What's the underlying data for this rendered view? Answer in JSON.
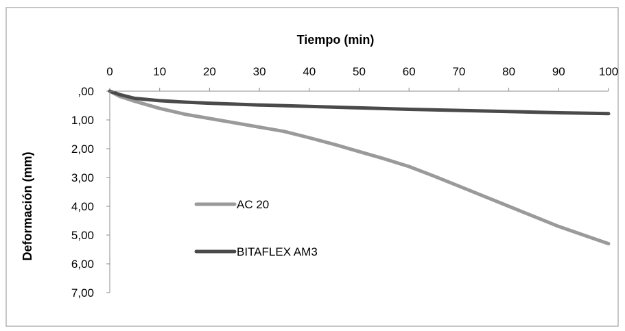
{
  "chart_data": {
    "type": "line",
    "title": "",
    "xlabel": "Tiempo (min)",
    "ylabel": "Deformación (mm)",
    "x_axis_position": "top",
    "y_axis_inverted": true,
    "xlim": [
      0,
      100
    ],
    "ylim": [
      0,
      7
    ],
    "x_ticks": [
      0,
      10,
      20,
      30,
      40,
      50,
      60,
      70,
      80,
      90,
      100
    ],
    "x_tick_labels": [
      "0",
      "10",
      "20",
      "30",
      "40",
      "50",
      "60",
      "70",
      "80",
      "90",
      "100"
    ],
    "y_ticks": [
      0,
      1,
      2,
      3,
      4,
      5,
      6,
      7
    ],
    "y_tick_labels": [
      ",00",
      "1,00",
      "2,00",
      "3,00",
      "4,00",
      "5,00",
      "6,00",
      "7,00"
    ],
    "grid": false,
    "legend_position": "left-center",
    "series": [
      {
        "name": "AC 20",
        "color": "#9a9a9a",
        "x": [
          0,
          2,
          5,
          10,
          15,
          20,
          25,
          30,
          35,
          40,
          45,
          50,
          55,
          60,
          65,
          70,
          75,
          80,
          85,
          90,
          95,
          100
        ],
        "values": [
          0,
          0.18,
          0.35,
          0.6,
          0.8,
          0.95,
          1.1,
          1.25,
          1.4,
          1.62,
          1.85,
          2.1,
          2.35,
          2.62,
          2.95,
          3.3,
          3.65,
          4.0,
          4.35,
          4.7,
          5.0,
          5.3
        ]
      },
      {
        "name": "BITAFLEX AM3",
        "color": "#4a4a4a",
        "x": [
          0,
          2,
          5,
          10,
          15,
          20,
          30,
          40,
          50,
          60,
          70,
          80,
          90,
          100
        ],
        "values": [
          0,
          0.12,
          0.25,
          0.33,
          0.38,
          0.42,
          0.48,
          0.53,
          0.58,
          0.63,
          0.67,
          0.71,
          0.75,
          0.78
        ]
      }
    ]
  }
}
